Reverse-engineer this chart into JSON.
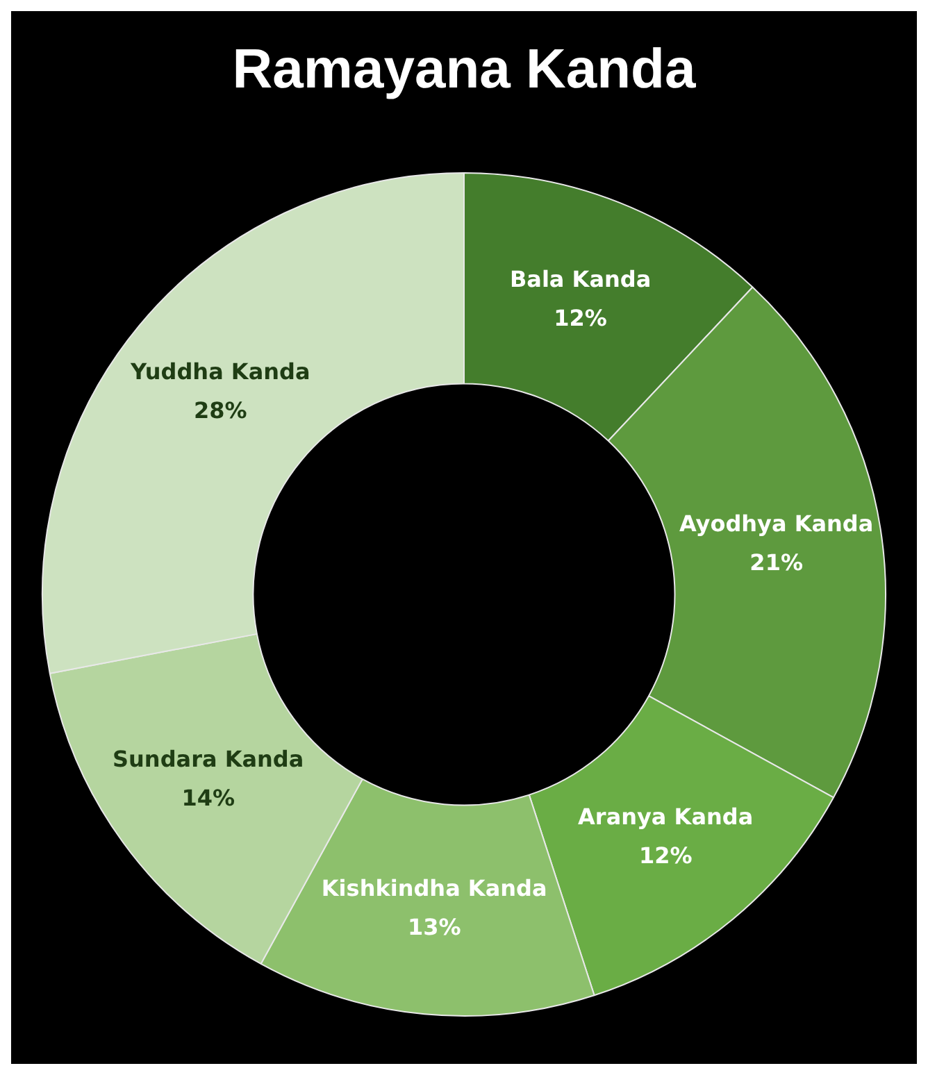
{
  "chart_data": {
    "type": "donut",
    "title": "Ramayana Kanda",
    "categories": [
      "Bala Kanda",
      "Ayodhya Kanda",
      "Aranya Kanda",
      "Kishkindha Kanda",
      "Sundara Kanda",
      "Yuddha Kanda"
    ],
    "values": [
      12,
      21,
      12,
      13,
      14,
      28
    ],
    "value_labels": [
      "12%",
      "21%",
      "12%",
      "13%",
      "14%",
      "28%"
    ],
    "colors": [
      "#447d2c",
      "#5e9a3e",
      "#6aad45",
      "#8dc06c",
      "#b5d59f",
      "#cde2c0"
    ],
    "legend": false
  }
}
